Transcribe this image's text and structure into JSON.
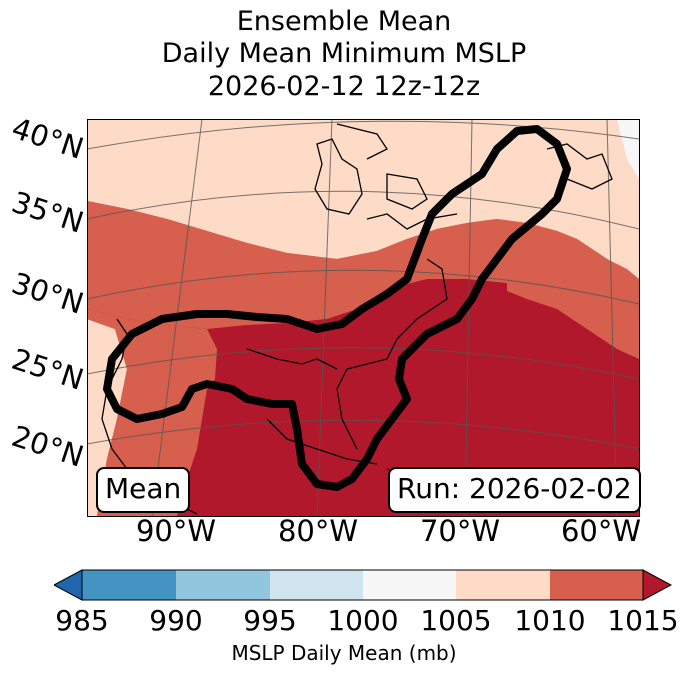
{
  "title": {
    "line1": "Ensemble Mean",
    "line2": "Daily Mean Minimum MSLP",
    "line3": "2026-02-12 12z-12z"
  },
  "map": {
    "lat_labels": [
      "40°N",
      "35°N",
      "30°N",
      "25°N",
      "20°N"
    ],
    "lon_labels": [
      "90°W",
      "80°W",
      "70°W",
      "60°W"
    ],
    "mean_label": "Mean",
    "run_label": "Run: 2026-02-02",
    "colors": {
      "c985_990": "#2166ac",
      "c990_995": "#4393c3",
      "c995_1000": "#92c5de",
      "c1000_1005": "#d1e5f0",
      "c1005_1010": "#f7f7f7",
      "c1010_1015": "#fddbc7",
      "c1015": "#d6604d",
      "c_high": "#b2182b"
    }
  },
  "colorbar": {
    "ticks": [
      "985",
      "990",
      "995",
      "1000",
      "1005",
      "1010",
      "1015"
    ],
    "label": "MSLP Daily Mean (mb)",
    "colors": [
      "#4393c3",
      "#92c5de",
      "#d1e5f0",
      "#f7f7f7",
      "#fddbc7",
      "#d6604d"
    ],
    "under_color": "#2166ac",
    "over_color": "#b2182b"
  }
}
